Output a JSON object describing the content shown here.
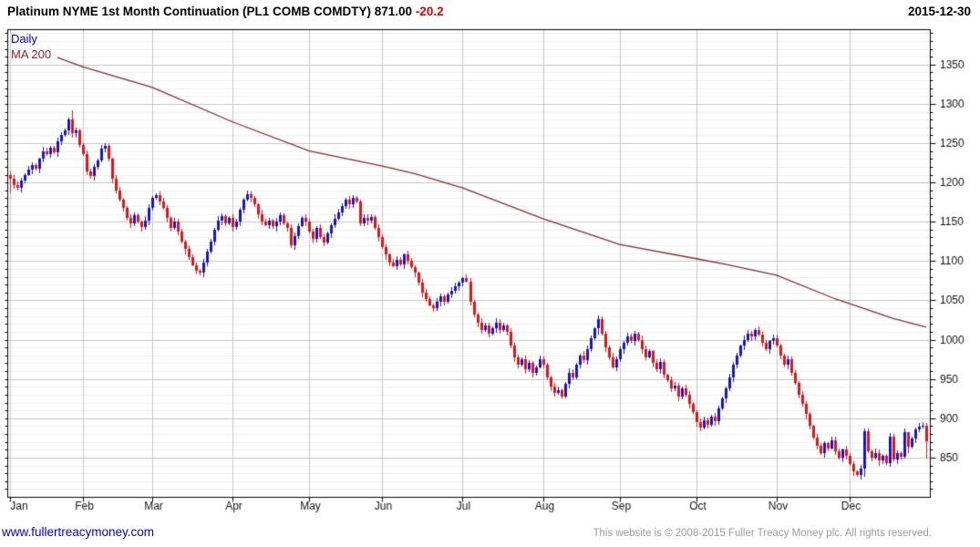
{
  "header": {
    "title": "Platinum NYME 1st Month Continuation (PL1 COMB COMDTY)",
    "last_price": "871.00",
    "change": "-20.2",
    "date": "2015-12-30"
  },
  "legend": {
    "timeframe": "Daily",
    "ma_label": "MA 200"
  },
  "footer": {
    "website": "www.fullertreacymoney.com",
    "copyright": "This website is © 2008-2015 Fuller Treacy Money plc. All rights reserved."
  },
  "colors": {
    "up": "#1515cd",
    "down": "#e11414",
    "ma": "#8e2828",
    "grid_major": "#c4c4c4",
    "grid_minor": "#ececec",
    "border": "#000000",
    "axis_text": "#111111",
    "change": "#e00000",
    "legend_daily": "#0000c8",
    "link": "#0000ee",
    "copyright": "#9a9a9a"
  },
  "chart_data": {
    "type": "candlestick",
    "title": "Platinum NYME 1st Month Continuation (PL1 COMB COMDTY)",
    "timeframe": "Daily",
    "last_price": 871.0,
    "change": -20.2,
    "date": "2015-12-30",
    "y_axis": {
      "min": 800,
      "max": 1395,
      "major_step": 50,
      "minor_step": 10,
      "labels": [
        1350,
        1300,
        1250,
        1200,
        1150,
        1100,
        1050,
        1000,
        950,
        900,
        850
      ]
    },
    "x_axis": {
      "months": [
        "Jan",
        "Feb",
        "Mar",
        "Apr",
        "May",
        "Jun",
        "Jul",
        "Aug",
        "Sep",
        "Oct",
        "Nov",
        "Dec"
      ],
      "month_start_day": [
        0,
        20,
        39,
        61,
        82,
        102,
        124,
        146,
        167,
        188,
        210,
        230
      ],
      "total_days": 252
    },
    "first_open": 1210,
    "closes": [
      1205,
      1197,
      1193,
      1203,
      1210,
      1216,
      1222,
      1218,
      1230,
      1240,
      1236,
      1244,
      1239,
      1252,
      1260,
      1266,
      1280,
      1263,
      1266,
      1248,
      1236,
      1214,
      1208,
      1220,
      1228,
      1243,
      1246,
      1230,
      1205,
      1190,
      1178,
      1168,
      1155,
      1148,
      1158,
      1150,
      1143,
      1152,
      1168,
      1180,
      1184,
      1176,
      1168,
      1155,
      1142,
      1150,
      1138,
      1125,
      1115,
      1105,
      1095,
      1088,
      1085,
      1098,
      1112,
      1125,
      1140,
      1152,
      1157,
      1148,
      1155,
      1143,
      1150,
      1165,
      1178,
      1185,
      1180,
      1172,
      1160,
      1150,
      1146,
      1152,
      1144,
      1150,
      1158,
      1148,
      1142,
      1120,
      1132,
      1145,
      1155,
      1150,
      1138,
      1128,
      1142,
      1130,
      1124,
      1135,
      1146,
      1154,
      1162,
      1170,
      1178,
      1172,
      1180,
      1176,
      1148,
      1155,
      1152,
      1156,
      1142,
      1130,
      1118,
      1108,
      1098,
      1094,
      1102,
      1096,
      1108,
      1100,
      1092,
      1085,
      1072,
      1060,
      1052,
      1044,
      1040,
      1048,
      1055,
      1048,
      1058,
      1062,
      1068,
      1072,
      1078,
      1074,
      1048,
      1032,
      1022,
      1012,
      1018,
      1008,
      1015,
      1022,
      1012,
      1018,
      1010,
      992,
      978,
      968,
      975,
      962,
      970,
      958,
      965,
      975,
      968,
      952,
      940,
      932,
      936,
      928,
      944,
      958,
      952,
      968,
      980,
      974,
      988,
      1002,
      1014,
      1026,
      1008,
      990,
      978,
      965,
      975,
      988,
      996,
      1004,
      998,
      1008,
      1000,
      988,
      978,
      985,
      970,
      962,
      972,
      955,
      948,
      938,
      942,
      928,
      938,
      930,
      918,
      908,
      895,
      888,
      898,
      892,
      902,
      896,
      912,
      925,
      938,
      952,
      968,
      980,
      992,
      1000,
      1008,
      1004,
      1012,
      1006,
      996,
      988,
      998,
      1002,
      992,
      980,
      968,
      975,
      958,
      945,
      930,
      918,
      905,
      890,
      875,
      865,
      856,
      868,
      862,
      872,
      858,
      850,
      860,
      852,
      842,
      832,
      828,
      836,
      884,
      858,
      850,
      856,
      846,
      852,
      843,
      876,
      848,
      856,
      851,
      882,
      864,
      874,
      886,
      889,
      891,
      871
    ],
    "wick_overrides": {
      "0": [
        1214,
        1186
      ],
      "17": [
        1292,
        1257
      ],
      "96": [
        1178,
        1144
      ],
      "151": [
        938,
        925
      ],
      "161": [
        1031,
        1006
      ],
      "234": [
        887,
        826
      ],
      "246": [
        882,
        856
      ],
      "251": [
        894,
        849
      ]
    },
    "ma200": {
      "label": "MA 200",
      "points": [
        [
          13,
          1359
        ],
        [
          20,
          1347
        ],
        [
          39,
          1321
        ],
        [
          61,
          1277
        ],
        [
          82,
          1240
        ],
        [
          102,
          1221
        ],
        [
          111,
          1211
        ],
        [
          124,
          1193
        ],
        [
          146,
          1154
        ],
        [
          167,
          1121
        ],
        [
          188,
          1103
        ],
        [
          196,
          1096
        ],
        [
          210,
          1082
        ],
        [
          226,
          1052
        ],
        [
          242,
          1027
        ],
        [
          251,
          1016
        ]
      ]
    }
  }
}
